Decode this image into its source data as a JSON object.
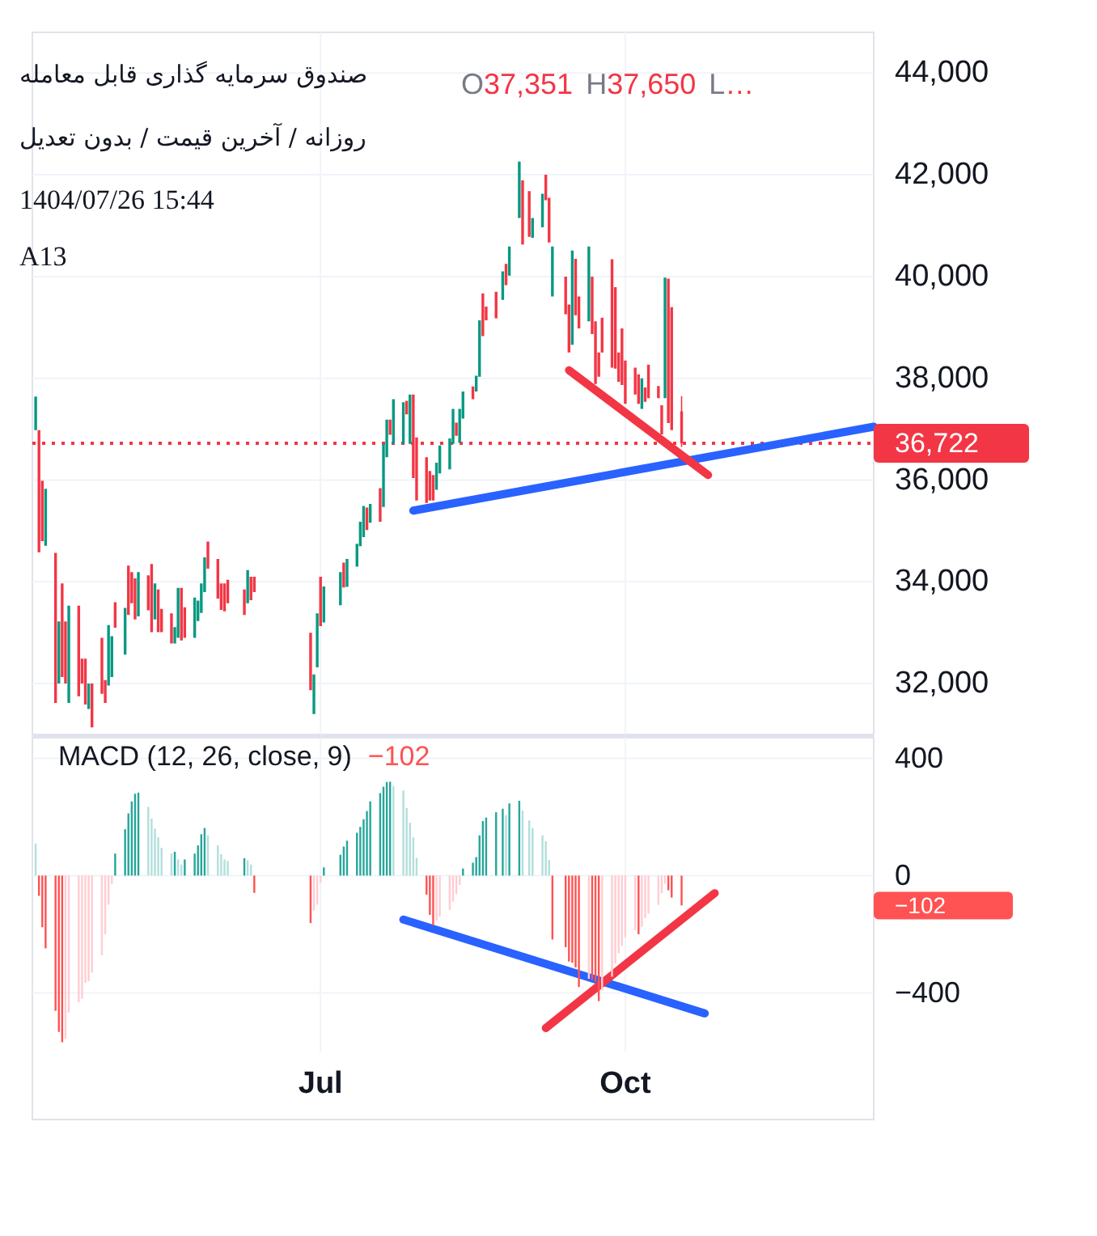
{
  "chart_data": [
    {
      "type": "candlestick",
      "title": "صندوق سرمایه گذاری قابل معامله",
      "subtitle": "روزانه / آخرین قیمت / بدون تعدیل",
      "annotations": [
        "O37,351 H37,650 L…",
        "1404/07/26 15:44",
        "A13"
      ],
      "x": [
        "--04-06",
        "--04-07",
        "--04-08",
        "--04-09",
        "--04-12",
        "--04-13",
        "--04-14",
        "--04-15",
        "--04-16",
        "--04-19",
        "--04-20",
        "--04-21",
        "--04-22",
        "--04-23",
        "--04-26",
        "--04-27",
        "--04-28",
        "--04-29",
        "--04-30",
        "--05-03",
        "--05-04",
        "--05-05",
        "--05-06",
        "--05-07",
        "--05-10",
        "--05-11",
        "--05-12",
        "--05-13",
        "--05-14",
        "--05-17",
        "--05-18",
        "--05-19",
        "--05-20",
        "--05-21",
        "--05-24",
        "--05-25",
        "--05-26",
        "--05-27",
        "--05-28",
        "--05-31",
        "--06-01",
        "--06-02",
        "--06-03",
        "--06-08",
        "--06-09",
        "--06-10",
        "--06-11",
        "--06-28",
        "--06-29",
        "--06-30",
        "--07-01",
        "--07-02",
        "--07-07",
        "--07-08",
        "--07-09",
        "--07-12",
        "--07-13",
        "--07-14",
        "--07-15",
        "--07-16",
        "--07-19",
        "--07-20",
        "--07-21",
        "--07-22",
        "--07-23",
        "--07-26",
        "--07-27",
        "--07-28",
        "--07-29",
        "--07-30",
        "--08-02",
        "--08-03",
        "--08-04",
        "--08-05",
        "--08-06",
        "--08-09",
        "--08-10",
        "--08-11",
        "--08-12",
        "--08-13",
        "--08-16",
        "--08-17",
        "--08-18",
        "--08-19",
        "--08-20",
        "--08-23",
        "--08-25",
        "--08-26",
        "--08-27",
        "--08-30",
        "--08-31",
        "--09-02",
        "--09-03",
        "--09-06",
        "--09-07",
        "--09-08",
        "--09-09",
        "--09-13",
        "--09-14",
        "--09-15",
        "--09-16",
        "--09-17",
        "--09-20",
        "--09-21",
        "--09-22",
        "--09-23",
        "--09-24",
        "--09-27",
        "--09-28",
        "--09-29",
        "--09-30",
        "--10-01",
        "--10-04",
        "--10-05",
        "--10-06",
        "--10-07",
        "--10-08",
        "--10-11",
        "--10-12",
        "--10-13",
        "--10-14",
        "--10-15",
        "--10-18"
      ],
      "series": [
        {
          "ohlc": [
            [
              36980,
              37640,
              36980,
              37640
            ],
            [
              36980,
              36980,
              34580,
              34580
            ],
            [
              35990,
              35990,
              34800,
              34800
            ],
            [
              34710,
              35830,
              34710,
              35830
            ],
            [
              34570,
              34570,
              31620,
              31620
            ],
            [
              32000,
              33220,
              32000,
              33220
            ],
            [
              33970,
              33970,
              32130,
              32130
            ],
            [
              33220,
              33220,
              32000,
              32000
            ],
            [
              31620,
              33530,
              31620,
              33530
            ],
            [
              33530,
              33530,
              31750,
              31750
            ],
            [
              32490,
              32490,
              32000,
              32000
            ],
            [
              32490,
              32490,
              31590,
              31590
            ],
            [
              31500,
              32000,
              31500,
              32000
            ],
            [
              32000,
              32000,
              31140,
              31140
            ],
            [
              32900,
              32900,
              31800,
              31800
            ],
            [
              32070,
              32070,
              31620,
              31620
            ],
            [
              31960,
              33150,
              31960,
              33150
            ],
            [
              32130,
              32930,
              32130,
              32930
            ],
            [
              33600,
              33600,
              33100,
              33100
            ],
            [
              32570,
              33490,
              32570,
              33490
            ],
            [
              34320,
              34320,
              33350,
              33350
            ],
            [
              34190,
              34190,
              33580,
              33580
            ],
            [
              34070,
              34070,
              33260,
              33260
            ],
            [
              33320,
              34190,
              33320,
              34190
            ],
            [
              34130,
              34130,
              33440,
              33440
            ],
            [
              34350,
              34350,
              33010,
              33010
            ],
            [
              33260,
              33970,
              33260,
              33970
            ],
            [
              33850,
              33850,
              33010,
              33010
            ],
            [
              33470,
              33470,
              33010,
              33010
            ],
            [
              33380,
              33380,
              32790,
              32790
            ],
            [
              32790,
              33110,
              32790,
              33110
            ],
            [
              32900,
              33880,
              32900,
              33880
            ],
            [
              33880,
              33880,
              32850,
              32850
            ],
            [
              33500,
              33500,
              32900,
              32900
            ],
            [
              32900,
              33690,
              32900,
              33690
            ],
            [
              33230,
              33630,
              33230,
              33630
            ],
            [
              33390,
              33970,
              33390,
              33970
            ],
            [
              33800,
              34480,
              33800,
              34480
            ],
            [
              34790,
              34790,
              34260,
              34260
            ],
            [
              34450,
              34450,
              33670,
              33670
            ],
            [
              33970,
              33970,
              33450,
              33450
            ],
            [
              33970,
              33970,
              33420,
              33420
            ],
            [
              34040,
              34040,
              33580,
              33580
            ],
            [
              33850,
              33850,
              33350,
              33350
            ],
            [
              33580,
              34230,
              33580,
              34230
            ],
            [
              34100,
              34100,
              33640,
              33640
            ],
            [
              34100,
              34100,
              33800,
              33800
            ],
            [
              33000,
              33000,
              31870,
              31870
            ],
            [
              31400,
              32180,
              31400,
              32180
            ],
            [
              32320,
              33380,
              32320,
              33380
            ],
            [
              34100,
              34100,
              33130,
              33130
            ],
            [
              33200,
              33910,
              33200,
              33910
            ],
            [
              33540,
              34190,
              33540,
              34190
            ],
            [
              34380,
              34380,
              33890,
              33890
            ],
            [
              33900,
              34450,
              33900,
              34450
            ],
            [
              34300,
              34750,
              34300,
              34750
            ],
            [
              34700,
              35180,
              34700,
              35180
            ],
            [
              34880,
              35490,
              34880,
              35490
            ],
            [
              35460,
              35460,
              35020,
              35020
            ],
            [
              35160,
              35530,
              35160,
              35530
            ],
            [
              35840,
              35840,
              35180,
              35180
            ],
            [
              35470,
              36710,
              35470,
              36710
            ],
            [
              36450,
              37190,
              36450,
              37190
            ],
            [
              37190,
              37190,
              36890,
              36890
            ],
            [
              36710,
              37590,
              36710,
              37590
            ],
            [
              36710,
              37530,
              36710,
              37530
            ],
            [
              37560,
              37560,
              37290,
              37290
            ],
            [
              36710,
              37680,
              36710,
              37680
            ],
            [
              37680,
              37680,
              36040,
              36040
            ],
            [
              36840,
              36840,
              35600,
              35600
            ],
            [
              36450,
              36450,
              35550,
              35550
            ],
            [
              36180,
              36180,
              35600,
              35600
            ],
            [
              36100,
              36100,
              35600,
              35600
            ],
            [
              35810,
              36340,
              35810,
              36340
            ],
            [
              36130,
              36680,
              36130,
              36680
            ],
            [
              36210,
              36820,
              36210,
              36820
            ],
            [
              36710,
              37400,
              36710,
              37400
            ],
            [
              37130,
              37130,
              36870,
              36870
            ],
            [
              36730,
              37400,
              36730,
              37400
            ],
            [
              37210,
              37740,
              37210,
              37740
            ],
            [
              37840,
              37840,
              37590,
              37590
            ],
            [
              37740,
              38050,
              37740,
              38050
            ],
            [
              38030,
              39140,
              38030,
              39140
            ],
            [
              39670,
              39670,
              38830,
              38830
            ],
            [
              39410,
              39410,
              39140,
              39140
            ],
            [
              39700,
              39700,
              39180,
              39180
            ],
            [
              39540,
              40100,
              39540,
              40100
            ],
            [
              40250,
              40250,
              39830,
              39830
            ],
            [
              40020,
              40590,
              40020,
              40590
            ],
            [
              41150,
              42260,
              41150,
              42260
            ],
            [
              41890,
              41890,
              40630,
              40630
            ],
            [
              41680,
              41680,
              40780,
              40780
            ],
            [
              40760,
              41150,
              40760,
              41150
            ],
            [
              40970,
              41630,
              40970,
              41630
            ],
            [
              42000,
              42000,
              41500,
              41500
            ],
            [
              41550,
              41550,
              40670,
              40670
            ],
            [
              39610,
              40590,
              39610,
              40590
            ],
            [
              40000,
              40000,
              39260,
              39260
            ],
            [
              39450,
              39450,
              38510,
              38510
            ],
            [
              38660,
              40510,
              38660,
              40510
            ],
            [
              40350,
              40350,
              39240,
              39240
            ],
            [
              39610,
              39610,
              38980,
              38980
            ],
            [
              39120,
              40590,
              39120,
              40590
            ],
            [
              40000,
              40000,
              38870,
              38870
            ],
            [
              39120,
              39120,
              37890,
              37890
            ],
            [
              38510,
              38510,
              38030,
              38030
            ],
            [
              39190,
              39190,
              38510,
              38510
            ],
            [
              40340,
              40340,
              38210,
              38210
            ],
            [
              39790,
              39790,
              38190,
              38190
            ],
            [
              38510,
              38510,
              37930,
              37930
            ],
            [
              38980,
              38980,
              37870,
              37870
            ],
            [
              38350,
              38350,
              37500,
              37500
            ],
            [
              38210,
              38210,
              37680,
              37680
            ],
            [
              38080,
              38080,
              37500,
              37500
            ],
            [
              37400,
              38000,
              37400,
              38000
            ],
            [
              37820,
              37820,
              37540,
              37540
            ],
            [
              38270,
              38270,
              37610,
              37610
            ],
            [
              37850,
              37850,
              37610,
              37610
            ],
            [
              37470,
              37470,
              36900,
              36900
            ],
            [
              37610,
              39980,
              37610,
              39980
            ],
            [
              39960,
              39960,
              37120,
              37120
            ],
            [
              39400,
              39400,
              36980,
              36980
            ],
            [
              37351,
              37650,
              36650,
              36722
            ]
          ]
        },
        {
          "type": "line",
          "color": "#2962ff",
          "x": [
            "--07-29",
            "--12-15"
          ],
          "values": [
            35400,
            37050
          ]
        },
        {
          "type": "line",
          "color": "#f23645",
          "x": [
            "--09-14",
            "--10-26"
          ],
          "values": [
            38160,
            36100
          ]
        }
      ],
      "xlim": [
        "--04-05",
        "--12-15"
      ],
      "xticks": [
        {
          "value": "--07-01",
          "label": null
        },
        {
          "value": "--10-01",
          "label": null
        }
      ],
      "ylim": [
        31000,
        44800
      ],
      "yticks": [
        {
          "value": 32000,
          "label": "32,000"
        },
        {
          "value": 34000,
          "label": "34,000"
        },
        {
          "value": 36000,
          "label": "36,000"
        },
        {
          "value": 38000,
          "label": "38,000"
        },
        {
          "value": 40000,
          "label": "40,000"
        },
        {
          "value": 42000,
          "label": "42,000"
        },
        {
          "value": 44000,
          "label": "44,000"
        }
      ],
      "ref_lines": [
        {
          "axis": "y",
          "value": 36722,
          "label": "36,722",
          "color": "#f23645",
          "line_style": "dotted"
        }
      ],
      "grid": true,
      "tick_labels": "y"
    },
    {
      "type": "bar",
      "title": "MACD (12, 26, close, 9)",
      "annotations": [
        "−102",
        "−102"
      ],
      "x": [
        "--04-06",
        "--04-07",
        "--04-08",
        "--04-09",
        "--04-12",
        "--04-13",
        "--04-14",
        "--04-15",
        "--04-16",
        "--04-19",
        "--04-20",
        "--04-21",
        "--04-22",
        "--04-23",
        "--04-26",
        "--04-27",
        "--04-28",
        "--04-29",
        "--04-30",
        "--05-03",
        "--05-04",
        "--05-05",
        "--05-06",
        "--05-07",
        "--05-10",
        "--05-11",
        "--05-12",
        "--05-13",
        "--05-14",
        "--05-17",
        "--05-18",
        "--05-19",
        "--05-20",
        "--05-21",
        "--05-24",
        "--05-25",
        "--05-26",
        "--05-27",
        "--05-28",
        "--05-31",
        "--06-01",
        "--06-02",
        "--06-03",
        "--06-08",
        "--06-09",
        "--06-10",
        "--06-11",
        "--06-28",
        "--06-29",
        "--06-30",
        "--07-01",
        "--07-02",
        "--07-07",
        "--07-08",
        "--07-09",
        "--07-12",
        "--07-13",
        "--07-14",
        "--07-15",
        "--07-16",
        "--07-19",
        "--07-20",
        "--07-21",
        "--07-22",
        "--07-23",
        "--07-26",
        "--07-27",
        "--07-28",
        "--07-29",
        "--07-30",
        "--08-02",
        "--08-03",
        "--08-04",
        "--08-05",
        "--08-06",
        "--08-09",
        "--08-10",
        "--08-11",
        "--08-12",
        "--08-13",
        "--08-16",
        "--08-17",
        "--08-18",
        "--08-19",
        "--08-20",
        "--08-23",
        "--08-25",
        "--08-26",
        "--08-27",
        "--08-30",
        "--08-31",
        "--09-02",
        "--09-03",
        "--09-06",
        "--09-07",
        "--09-08",
        "--09-09",
        "--09-13",
        "--09-14",
        "--09-15",
        "--09-16",
        "--09-17",
        "--09-20",
        "--09-21",
        "--09-22",
        "--09-23",
        "--09-24",
        "--09-27",
        "--09-28",
        "--09-29",
        "--09-30",
        "--10-01",
        "--10-04",
        "--10-05",
        "--10-06",
        "--10-07",
        "--10-08",
        "--10-11",
        "--10-12",
        "--10-13",
        "--10-14",
        "--10-15",
        "--10-18"
      ],
      "series": [
        {
          "values": [
            109,
            -69,
            -176,
            -248,
            -461,
            -533,
            -568,
            -556,
            -467,
            -432,
            -420,
            -366,
            -360,
            -331,
            -271,
            -200,
            -99,
            -28,
            75,
            158,
            212,
            253,
            279,
            283,
            234,
            194,
            160,
            131,
            95,
            75,
            81,
            55,
            38,
            55,
            75,
            103,
            141,
            162,
            137,
            103,
            73,
            55,
            50,
            59,
            52,
            38,
            -59,
            -162,
            -119,
            -99,
            -24,
            28,
            71,
            99,
            119,
            146,
            166,
            192,
            220,
            253,
            281,
            303,
            319,
            320,
            305,
            290,
            230,
            180,
            130,
            60,
            -65,
            -134,
            -170,
            -154,
            -140,
            -117,
            -89,
            -63,
            -32,
            24,
            44,
            63,
            137,
            186,
            198,
            216,
            228,
            206,
            246,
            255,
            222,
            188,
            162,
            137,
            117,
            53,
            -218,
            -244,
            -293,
            -297,
            -313,
            -380,
            -352,
            -356,
            -362,
            -428,
            -392,
            -345,
            -300,
            -265,
            -240,
            -210,
            -185,
            -200,
            -175,
            -145,
            -130,
            -100,
            -60,
            -28,
            -50,
            -75,
            -102
          ],
          "colors": [
            "#b2dfdb",
            "#ff5252",
            "#ff5252",
            "#ff5252",
            "#ff5252",
            "#ff5252",
            "#ff5252",
            "#ffcdd2",
            "#ffcdd2",
            "#ffcdd2",
            "#ffcdd2",
            "#ffcdd2",
            "#ffcdd2",
            "#ffcdd2",
            "#ffcdd2",
            "#ffcdd2",
            "#ffcdd2",
            "#ffcdd2",
            "#26a69a",
            "#26a69a",
            "#26a69a",
            "#26a69a",
            "#26a69a",
            "#26a69a",
            "#b2dfdb",
            "#b2dfdb",
            "#b2dfdb",
            "#b2dfdb",
            "#b2dfdb",
            "#b2dfdb",
            "#26a69a",
            "#b2dfdb",
            "#b2dfdb",
            "#26a69a",
            "#26a69a",
            "#26a69a",
            "#26a69a",
            "#26a69a",
            "#b2dfdb",
            "#b2dfdb",
            "#b2dfdb",
            "#b2dfdb",
            "#b2dfdb",
            "#26a69a",
            "#b2dfdb",
            "#b2dfdb",
            "#ff5252",
            "#ff5252",
            "#ffcdd2",
            "#ffcdd2",
            "#ffcdd2",
            "#26a69a",
            "#26a69a",
            "#26a69a",
            "#26a69a",
            "#26a69a",
            "#26a69a",
            "#26a69a",
            "#26a69a",
            "#26a69a",
            "#26a69a",
            "#26a69a",
            "#26a69a",
            "#26a69a",
            "#b2dfdb",
            "#b2dfdb",
            "#b2dfdb",
            "#b2dfdb",
            "#b2dfdb",
            "#b2dfdb",
            "#ff5252",
            "#ff5252",
            "#ff5252",
            "#ffcdd2",
            "#ffcdd2",
            "#ffcdd2",
            "#ffcdd2",
            "#ffcdd2",
            "#ffcdd2",
            "#26a69a",
            "#26a69a",
            "#26a69a",
            "#26a69a",
            "#26a69a",
            "#26a69a",
            "#26a69a",
            "#26a69a",
            "#b2dfdb",
            "#26a69a",
            "#26a69a",
            "#b2dfdb",
            "#b2dfdb",
            "#b2dfdb",
            "#b2dfdb",
            "#b2dfdb",
            "#b2dfdb",
            "#ff5252",
            "#ff5252",
            "#ff5252",
            "#ff5252",
            "#ff5252",
            "#ff5252",
            "#ffcdd2",
            "#ff5252",
            "#ff5252",
            "#ff5252",
            "#ffcdd2",
            "#ffcdd2",
            "#ffcdd2",
            "#ffcdd2",
            "#ffcdd2",
            "#ffcdd2",
            "#ffcdd2",
            "#ff5252",
            "#ffcdd2",
            "#ffcdd2",
            "#ffcdd2",
            "#ffcdd2",
            "#ffcdd2",
            "#ffcdd2",
            "#ff5252",
            "#ff5252",
            "#ff5252"
          ]
        },
        {
          "type": "line",
          "color": "#2962ff",
          "x": [
            "--07-26",
            "--10-25"
          ],
          "values": [
            -150,
            -470
          ]
        },
        {
          "type": "line",
          "color": "#f23645",
          "x": [
            "--09-07",
            "--10-28"
          ],
          "values": [
            -520,
            -60
          ]
        }
      ],
      "xlim": [
        "--04-05",
        "--12-15"
      ],
      "xticks": [
        {
          "value": "--07-01",
          "label": "Jul"
        },
        {
          "value": "--10-01",
          "label": "Oct"
        }
      ],
      "ylim": [
        -600,
        470
      ],
      "yticks": [
        400,
        0,
        {
          "value": -400,
          "label": "−400"
        }
      ],
      "grid": true
    }
  ]
}
